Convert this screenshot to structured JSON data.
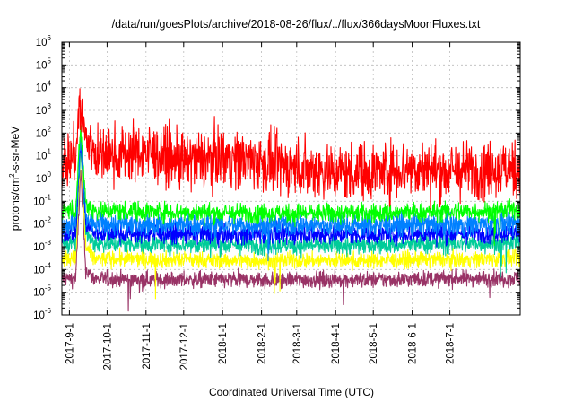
{
  "chart_data": {
    "type": "line",
    "title": "/data/run/goesPlots/archive/2018-08-26/flux/../flux/366daysMoonFluxes.txt",
    "xlabel": "Coordinated Universal Time (UTC)",
    "ylabel_parts": [
      "protons/cm",
      "2",
      "-s-sr-MeV"
    ],
    "log_y": true,
    "grid": true,
    "legend": "none",
    "xlim": [
      "2017-08-26",
      "2018-08-26"
    ],
    "ylim": [
      1e-06,
      1000000.0
    ],
    "x_ticks": [
      "2017-9-1",
      "2017-10-1",
      "2017-11-1",
      "2017-12-1",
      "2018-1-1",
      "2018-2-1",
      "2018-3-1",
      "2018-4-1",
      "2018-5-1",
      "2018-6-1",
      "2018-7-1"
    ],
    "y_ticks": [
      {
        "base": "10",
        "exp": "-6"
      },
      {
        "base": "10",
        "exp": "-5"
      },
      {
        "base": "10",
        "exp": "-4"
      },
      {
        "base": "10",
        "exp": "-3"
      },
      {
        "base": "10",
        "exp": "-2"
      },
      {
        "base": "10",
        "exp": "-1"
      },
      {
        "base": "10",
        "exp": "0"
      },
      {
        "base": "10",
        "exp": "1"
      },
      {
        "base": "10",
        "exp": "2"
      },
      {
        "base": "10",
        "exp": "3"
      },
      {
        "base": "10",
        "exp": "4"
      },
      {
        "base": "10",
        "exp": "5"
      },
      {
        "base": "10",
        "exp": "6"
      }
    ],
    "series": [
      {
        "color": "#993366",
        "baseline": 4e-05,
        "spread": 0.25,
        "peak": 2,
        "points": [
          [
            "2017-08-26",
            4e-05
          ],
          [
            "2017-09-06",
            4e-05
          ],
          [
            "2017-09-10",
            2
          ],
          [
            "2017-09-14",
            0.0001
          ],
          [
            "2017-09-20",
            4e-05
          ],
          [
            "2017-11-01",
            3.5e-05
          ],
          [
            "2018-01-01",
            3.5e-05
          ],
          [
            "2018-03-01",
            3.5e-05
          ],
          [
            "2018-05-01",
            3.5e-05
          ],
          [
            "2018-07-01",
            4e-05
          ],
          [
            "2018-08-26",
            4e-05
          ]
        ]
      },
      {
        "color": "#ffff00",
        "baseline": 0.0003,
        "spread": 0.25,
        "peak": 20,
        "points": [
          [
            "2017-08-26",
            0.0003
          ],
          [
            "2017-09-06",
            0.0003
          ],
          [
            "2017-09-10",
            20
          ],
          [
            "2017-09-14",
            0.001
          ],
          [
            "2017-09-20",
            0.0003
          ],
          [
            "2018-01-01",
            0.00025
          ],
          [
            "2018-05-01",
            0.00025
          ],
          [
            "2018-08-26",
            0.0003
          ]
        ]
      },
      {
        "color": "#00cc99",
        "baseline": 0.0015,
        "spread": 0.3,
        "peak": 40,
        "points": [
          [
            "2017-08-26",
            0.0015
          ],
          [
            "2017-09-06",
            0.0015
          ],
          [
            "2017-09-10",
            40
          ],
          [
            "2017-09-14",
            0.005
          ],
          [
            "2017-09-20",
            0.0015
          ],
          [
            "2018-01-01",
            0.0012
          ],
          [
            "2018-05-01",
            0.0012
          ],
          [
            "2018-08-26",
            0.0015
          ]
        ]
      },
      {
        "color": "#0000ff",
        "baseline": 0.004,
        "spread": 0.3,
        "peak": 60,
        "points": [
          [
            "2017-08-26",
            0.004
          ],
          [
            "2017-09-06",
            0.004
          ],
          [
            "2017-09-10",
            60
          ],
          [
            "2017-09-14",
            0.01
          ],
          [
            "2017-09-20",
            0.004
          ],
          [
            "2018-01-01",
            0.0035
          ],
          [
            "2018-05-01",
            0.0035
          ],
          [
            "2018-08-26",
            0.004
          ]
        ]
      },
      {
        "color": "#0080ff",
        "baseline": 0.01,
        "spread": 0.35,
        "peak": 80,
        "points": [
          [
            "2017-08-26",
            0.01
          ],
          [
            "2017-09-06",
            0.01
          ],
          [
            "2017-09-10",
            80
          ],
          [
            "2017-09-14",
            0.02
          ],
          [
            "2017-09-20",
            0.01
          ],
          [
            "2018-01-01",
            0.009
          ],
          [
            "2018-05-01",
            0.009
          ],
          [
            "2018-08-26",
            0.01
          ]
        ]
      },
      {
        "color": "#00ff00",
        "baseline": 0.04,
        "spread": 0.3,
        "peak": 200,
        "points": [
          [
            "2017-08-26",
            0.04
          ],
          [
            "2017-09-06",
            0.04
          ],
          [
            "2017-09-10",
            200
          ],
          [
            "2017-09-14",
            0.08
          ],
          [
            "2017-09-20",
            0.04
          ],
          [
            "2018-01-01",
            0.03
          ],
          [
            "2018-05-01",
            0.03
          ],
          [
            "2018-08-26",
            0.04
          ]
        ]
      },
      {
        "color": "#ff0000",
        "baseline": 5,
        "spread": 0.9,
        "peak": 2000,
        "points": [
          [
            "2017-08-26",
            5
          ],
          [
            "2017-09-06",
            10
          ],
          [
            "2017-09-09",
            2000
          ],
          [
            "2017-09-14",
            50
          ],
          [
            "2017-09-25",
            10
          ],
          [
            "2017-11-01",
            15
          ],
          [
            "2017-12-01",
            5
          ],
          [
            "2018-01-01",
            10
          ],
          [
            "2018-02-01",
            5
          ],
          [
            "2018-03-01",
            3
          ],
          [
            "2018-04-01",
            2
          ],
          [
            "2018-05-01",
            2
          ],
          [
            "2018-06-01",
            3
          ],
          [
            "2018-07-01",
            2
          ],
          [
            "2018-08-26",
            3
          ]
        ]
      }
    ]
  }
}
